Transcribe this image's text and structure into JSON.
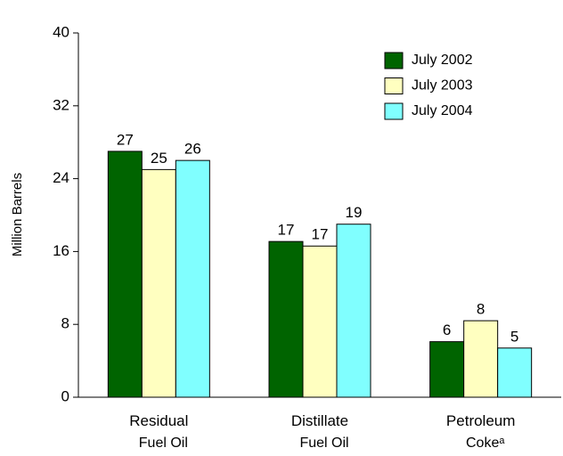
{
  "chart_data": {
    "type": "bar",
    "y_label": "Million Barrels",
    "categories": [
      "Residual\nFuel Oil",
      "Distillate\nFuel Oil",
      "Petroleum\nCokeᵃ"
    ],
    "series": [
      {
        "name": "July 2002",
        "color": "#006400",
        "values": [
          27.0,
          17.1,
          6.1
        ],
        "value_labels": [
          "27",
          "17",
          "6"
        ]
      },
      {
        "name": "July 2003",
        "color": "#ffffc0",
        "values": [
          25.0,
          16.6,
          8.4
        ],
        "value_labels": [
          "25",
          "17",
          "8"
        ]
      },
      {
        "name": "July 2004",
        "color": "#80ffff",
        "values": [
          26.0,
          19.0,
          5.4
        ],
        "value_labels": [
          "26",
          "19",
          "5"
        ]
      }
    ],
    "ylim": [
      0,
      40
    ],
    "yticks": [
      0,
      8,
      16,
      24,
      32,
      40
    ],
    "legend": "upper right"
  }
}
